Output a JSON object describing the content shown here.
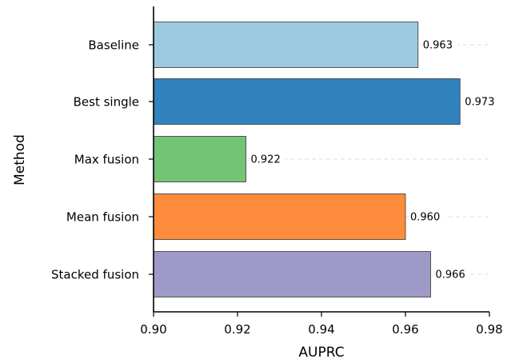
{
  "chart_data": {
    "type": "bar",
    "orientation": "horizontal",
    "categories": [
      "Baseline",
      "Best single",
      "Max fusion",
      "Mean fusion",
      "Stacked fusion"
    ],
    "values": [
      0.963,
      0.973,
      0.922,
      0.96,
      0.966
    ],
    "value_labels": [
      "0.963",
      "0.973",
      "0.922",
      "0.960",
      "0.966"
    ],
    "colors": [
      "#9ecae1",
      "#3182bd",
      "#74c476",
      "#fd8d3c",
      "#9e9ac8"
    ],
    "xlabel": "AUPRC",
    "ylabel": "Method",
    "xlim": [
      0.9,
      0.98
    ],
    "xticks": [
      "0.90",
      "0.92",
      "0.94",
      "0.96",
      "0.98"
    ],
    "xtick_values": [
      0.9,
      0.92,
      0.94,
      0.96,
      0.98
    ],
    "grid": "x dashed",
    "legend": "none"
  }
}
